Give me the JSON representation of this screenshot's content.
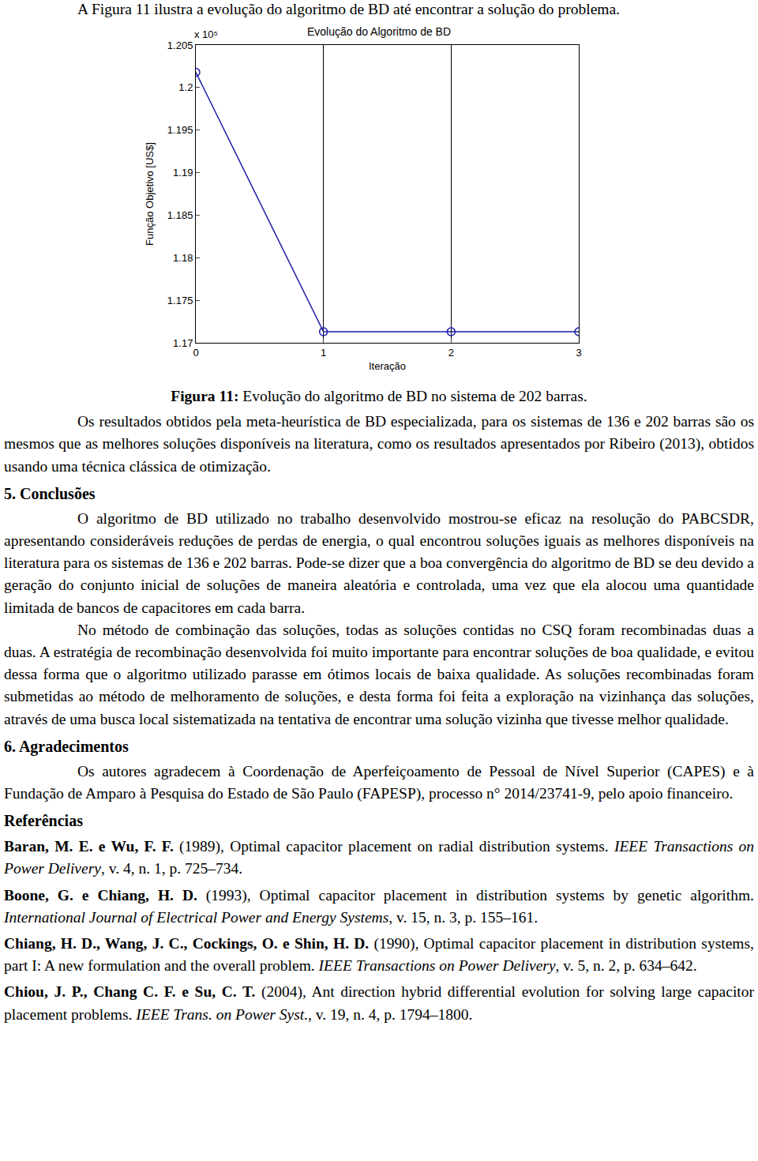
{
  "page": {
    "intro": "A Figura 11 ilustra a evolução do algoritmo de BD até encontrar a solução do problema.",
    "caption": {
      "label": "Figura 11:",
      "text": " Evolução do algoritmo de BD no sistema de 202 barras."
    },
    "paragraph_results": "Os resultados obtidos pela meta-heurística de BD especializada, para os sistemas de 136 e 202 barras são os mesmos que as melhores soluções disponíveis na literatura, como os resultados apresentados por Ribeiro (2013), obtidos usando uma técnica clássica de otimização.",
    "sections": [
      {
        "heading": "5. Conclusões",
        "paragraphs": [
          "O algoritmo de BD utilizado no trabalho desenvolvido mostrou-se eficaz na resolução do PABCSDR, apresentando consideráveis reduções de perdas de energia, o qual encontrou soluções iguais as melhores disponíveis na literatura para os sistemas de 136 e 202 barras. Pode-se dizer que a boa convergência do algoritmo de BD se deu devido a geração do conjunto inicial de soluções de maneira aleatória e controlada, uma vez que ela alocou uma quantidade limitada de bancos de capacitores em cada barra.",
          "No método de combinação das soluções, todas as soluções contidas no CSQ foram recombinadas duas a duas. A estratégia de recombinação desenvolvida foi muito importante para encontrar soluções de boa qualidade, e evitou dessa forma que o algoritmo utilizado parasse em ótimos locais de baixa qualidade. As soluções recombinadas foram submetidas ao método de melhoramento de soluções, e desta forma foi feita a exploração na vizinhança das soluções, através de uma busca local sistematizada na tentativa de encontrar uma solução vizinha que tivesse melhor qualidade."
        ]
      },
      {
        "heading": "6. Agradecimentos",
        "paragraphs": [
          "Os autores agradecem à Coordenação de Aperfeiçoamento de Pessoal de Nível Superior (CAPES) e à Fundação de Amparo à Pesquisa do Estado de São Paulo (FAPESP), processo n° 2014/23741-9, pelo apoio financeiro."
        ]
      }
    ],
    "references_heading": "Referências",
    "references": [
      {
        "authors": "Baran, M. E. e Wu, F. F.",
        "text": " (1989), Optimal capacitor placement on radial distribution systems. ",
        "journal": "IEEE Transactions on Power Delivery",
        "tail": ", v. 4, n. 1, p. 725–734."
      },
      {
        "authors": "Boone, G. e Chiang, H. D.",
        "text": " (1993), Optimal capacitor placement in distribution systems by genetic algorithm. ",
        "journal": "International Journal of Electrical Power and Energy Systems",
        "tail": ", v. 15, n. 3, p. 155–161."
      },
      {
        "authors": "Chiang, H. D., Wang, J. C., Cockings, O. e Shin, H. D.",
        "text": " (1990), Optimal capacitor placement in distribution systems, part I: A new formulation and the overall problem. ",
        "journal": "IEEE Transactions on Power Delivery",
        "tail": ", v. 5, n. 2, p. 634–642."
      },
      {
        "authors": "Chiou, J. P., Chang C. F. e Su, C. T.",
        "text": " (2004), Ant direction hybrid differential evolution for solving large capacitor placement problems. ",
        "journal": "IEEE Trans. on Power Syst.",
        "tail": ", v. 19, n. 4, p. 1794–1800."
      }
    ]
  },
  "chart_data": {
    "type": "line",
    "title": "Evolução do Algoritmo de BD",
    "x_label": "Iteração",
    "y_label": "Função Objetivo [US$]",
    "annotations": [
      {
        "text": "x 10⁵"
      }
    ],
    "x": [
      0,
      1,
      2,
      3
    ],
    "values": [
      1.2018,
      1.1713,
      1.1713,
      1.1713
    ],
    "color": "#1c1caa",
    "marker": "circle-open",
    "line_style": "solid",
    "xlim": [
      0,
      3
    ],
    "xticks": [
      0,
      1,
      2,
      3
    ],
    "ylim": [
      1.17,
      1.205
    ],
    "yticks": [
      1.17,
      1.175,
      1.18,
      1.185,
      1.19,
      1.195,
      1.2,
      1.205
    ],
    "grid": "x"
  }
}
